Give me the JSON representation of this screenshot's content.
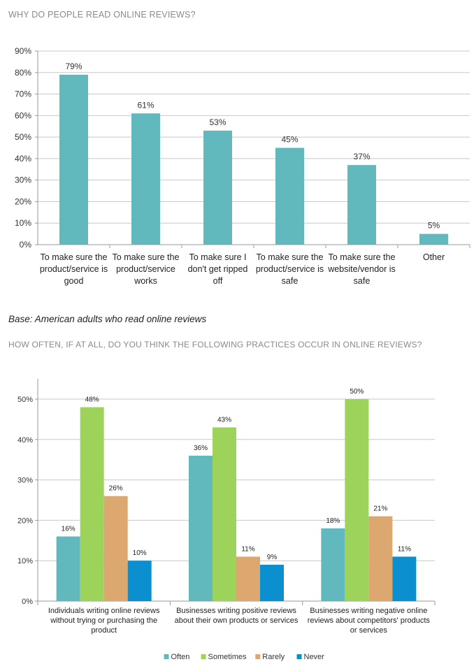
{
  "headings": {
    "chart1_title": "WHY DO PEOPLE READ ONLINE REVIEWS?",
    "base_note": "Base: American adults who read online reviews",
    "chart2_title": "HOW OFTEN, IF AT ALL, DO YOU THINK THE FOLLOWING PRACTICES OCCUR IN ONLINE REVIEWS?"
  },
  "chart_data": [
    {
      "type": "bar",
      "title": "WHY DO PEOPLE READ ONLINE REVIEWS?",
      "categories": [
        [
          "To make sure the",
          "product/service is",
          "good"
        ],
        [
          "To make sure the",
          "product/service",
          "works"
        ],
        [
          "To make sure I",
          "don't get ripped",
          "off"
        ],
        [
          "To make sure the",
          "product/service is",
          "safe"
        ],
        [
          "To make sure the",
          "website/vendor is",
          "safe"
        ],
        [
          "Other"
        ]
      ],
      "values": [
        79,
        61,
        53,
        45,
        37,
        5
      ],
      "data_labels": [
        "79%",
        "61%",
        "53%",
        "45%",
        "37%",
        "5%"
      ],
      "ylim": [
        0,
        90
      ],
      "yticks": [
        "0%",
        "10%",
        "20%",
        "30%",
        "40%",
        "50%",
        "60%",
        "70%",
        "80%",
        "90%"
      ],
      "grid": true,
      "color": "#62b9bd"
    },
    {
      "type": "bar",
      "title": "HOW OFTEN, IF AT ALL, DO YOU THINK THE FOLLOWING PRACTICES OCCUR IN ONLINE REVIEWS?",
      "categories": [
        [
          "Individuals writing online reviews",
          "without trying or purchasing the",
          "product"
        ],
        [
          "Businesses writing positive reviews",
          "about their own products or services"
        ],
        [
          "Businesses writing negative online",
          "reviews about  competitors' products",
          "or services"
        ]
      ],
      "series": [
        {
          "name": "Often",
          "color": "#62b9bd",
          "values": [
            16,
            36,
            18
          ],
          "labels": [
            "16%",
            "36%",
            "18%"
          ]
        },
        {
          "name": "Sometimes",
          "color": "#9ed35b",
          "values": [
            48,
            43,
            50
          ],
          "labels": [
            "48%",
            "43%",
            "50%"
          ]
        },
        {
          "name": "Rarely",
          "color": "#dca86f",
          "values": [
            26,
            11,
            21
          ],
          "labels": [
            "26%",
            "11%",
            "21%"
          ]
        },
        {
          "name": "Never",
          "color": "#0c8fcf",
          "values": [
            10,
            9,
            11
          ],
          "labels": [
            "10%",
            "9%",
            "11%"
          ]
        }
      ],
      "ylim": [
        0,
        55
      ],
      "yticks": [
        {
          "value": 0,
          "label": "0%"
        },
        {
          "value": 10,
          "label": "10%"
        },
        {
          "value": 20,
          "label": "20%"
        },
        {
          "value": 30,
          "label": "30%"
        },
        {
          "value": 40,
          "label": "40%"
        },
        {
          "value": 50,
          "label": "50%"
        }
      ],
      "grid": true,
      "legend": "bottom-center"
    }
  ]
}
